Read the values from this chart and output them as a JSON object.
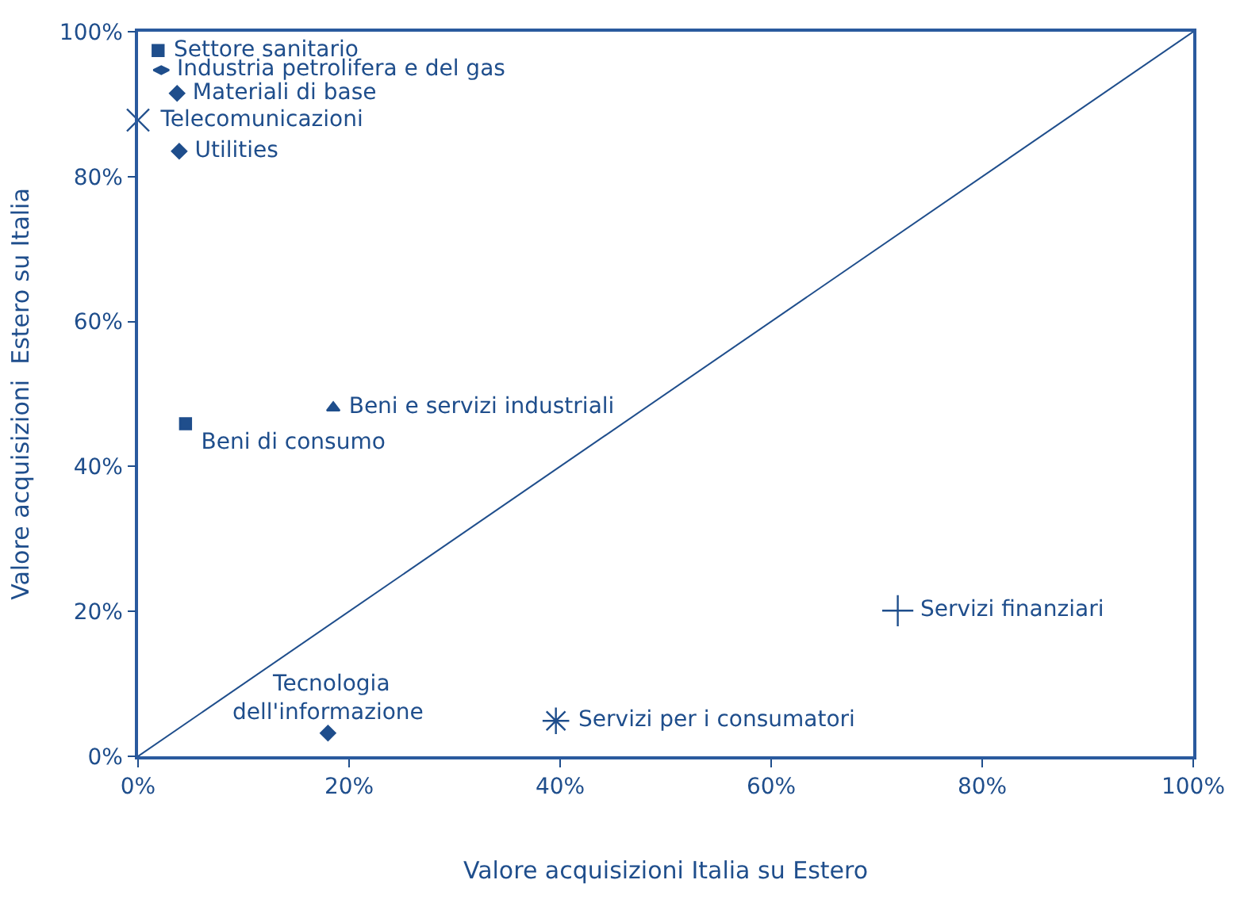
{
  "chart_data": {
    "type": "scatter",
    "xlabel": "Valore acquisizioni Italia su Estero",
    "ylabel": "Valore acquisizioni  Estero su Italia",
    "xlim": [
      0,
      100
    ],
    "ylim": [
      0,
      100
    ],
    "xticks": [
      {
        "value": 0,
        "label": "0%"
      },
      {
        "value": 20,
        "label": "20%"
      },
      {
        "value": 40,
        "label": "40%"
      },
      {
        "value": 60,
        "label": "60%"
      },
      {
        "value": 80,
        "label": "80%"
      },
      {
        "value": 100,
        "label": "100%"
      }
    ],
    "yticks": [
      {
        "value": 0,
        "label": "0%"
      },
      {
        "value": 20,
        "label": "20%"
      },
      {
        "value": 40,
        "label": "40%"
      },
      {
        "value": 60,
        "label": "60%"
      },
      {
        "value": 80,
        "label": "80%"
      },
      {
        "value": 100,
        "label": "100%"
      }
    ],
    "legend": false,
    "series": [
      {
        "type": "line",
        "color": "#1f4e8c",
        "x": [
          0,
          100
        ],
        "values": [
          0,
          100
        ],
        "marker": "none"
      },
      {
        "name": "Settore sanitario",
        "color": "#1f4e8c",
        "x": [
          1.9
        ],
        "values": [
          97.4
        ],
        "marker": "square"
      },
      {
        "name": "Industria petrolifera e del gas",
        "color": "#1f4e8c",
        "x": [
          2.2
        ],
        "values": [
          94.7
        ],
        "marker": "diamond"
      },
      {
        "name": "Materiali di base",
        "color": "#1f4e8c",
        "x": [
          3.7
        ],
        "values": [
          91.5
        ],
        "marker": "diamond"
      },
      {
        "name": "Telecomunicazioni",
        "color": "#1f4e8c",
        "x": [
          0
        ],
        "values": [
          87.8
        ],
        "marker": "cross"
      },
      {
        "name": "Utilities",
        "color": "#1f4e8c",
        "x": [
          3.9
        ],
        "values": [
          83.5
        ],
        "marker": "diamond"
      },
      {
        "name": "Beni di consumo",
        "color": "#1f4e8c",
        "x": [
          4.5
        ],
        "values": [
          45.9
        ],
        "marker": "square"
      },
      {
        "name": "Beni e servizi industriali",
        "color": "#1f4e8c",
        "x": [
          18.5
        ],
        "values": [
          48.1
        ],
        "marker": "triangle"
      },
      {
        "name": "Tecnologia dell'informazione",
        "color": "#1f4e8c",
        "x": [
          18
        ],
        "values": [
          3.2
        ],
        "marker": "diamond"
      },
      {
        "name": "Servizi per i consumatori",
        "color": "#1f4e8c",
        "x": [
          39.6
        ],
        "values": [
          4.9
        ],
        "marker": "cross"
      },
      {
        "name": "Servizi finanziari",
        "color": "#1f4e8c",
        "x": [
          72
        ],
        "values": [
          20.1
        ],
        "marker": "cross"
      }
    ]
  }
}
